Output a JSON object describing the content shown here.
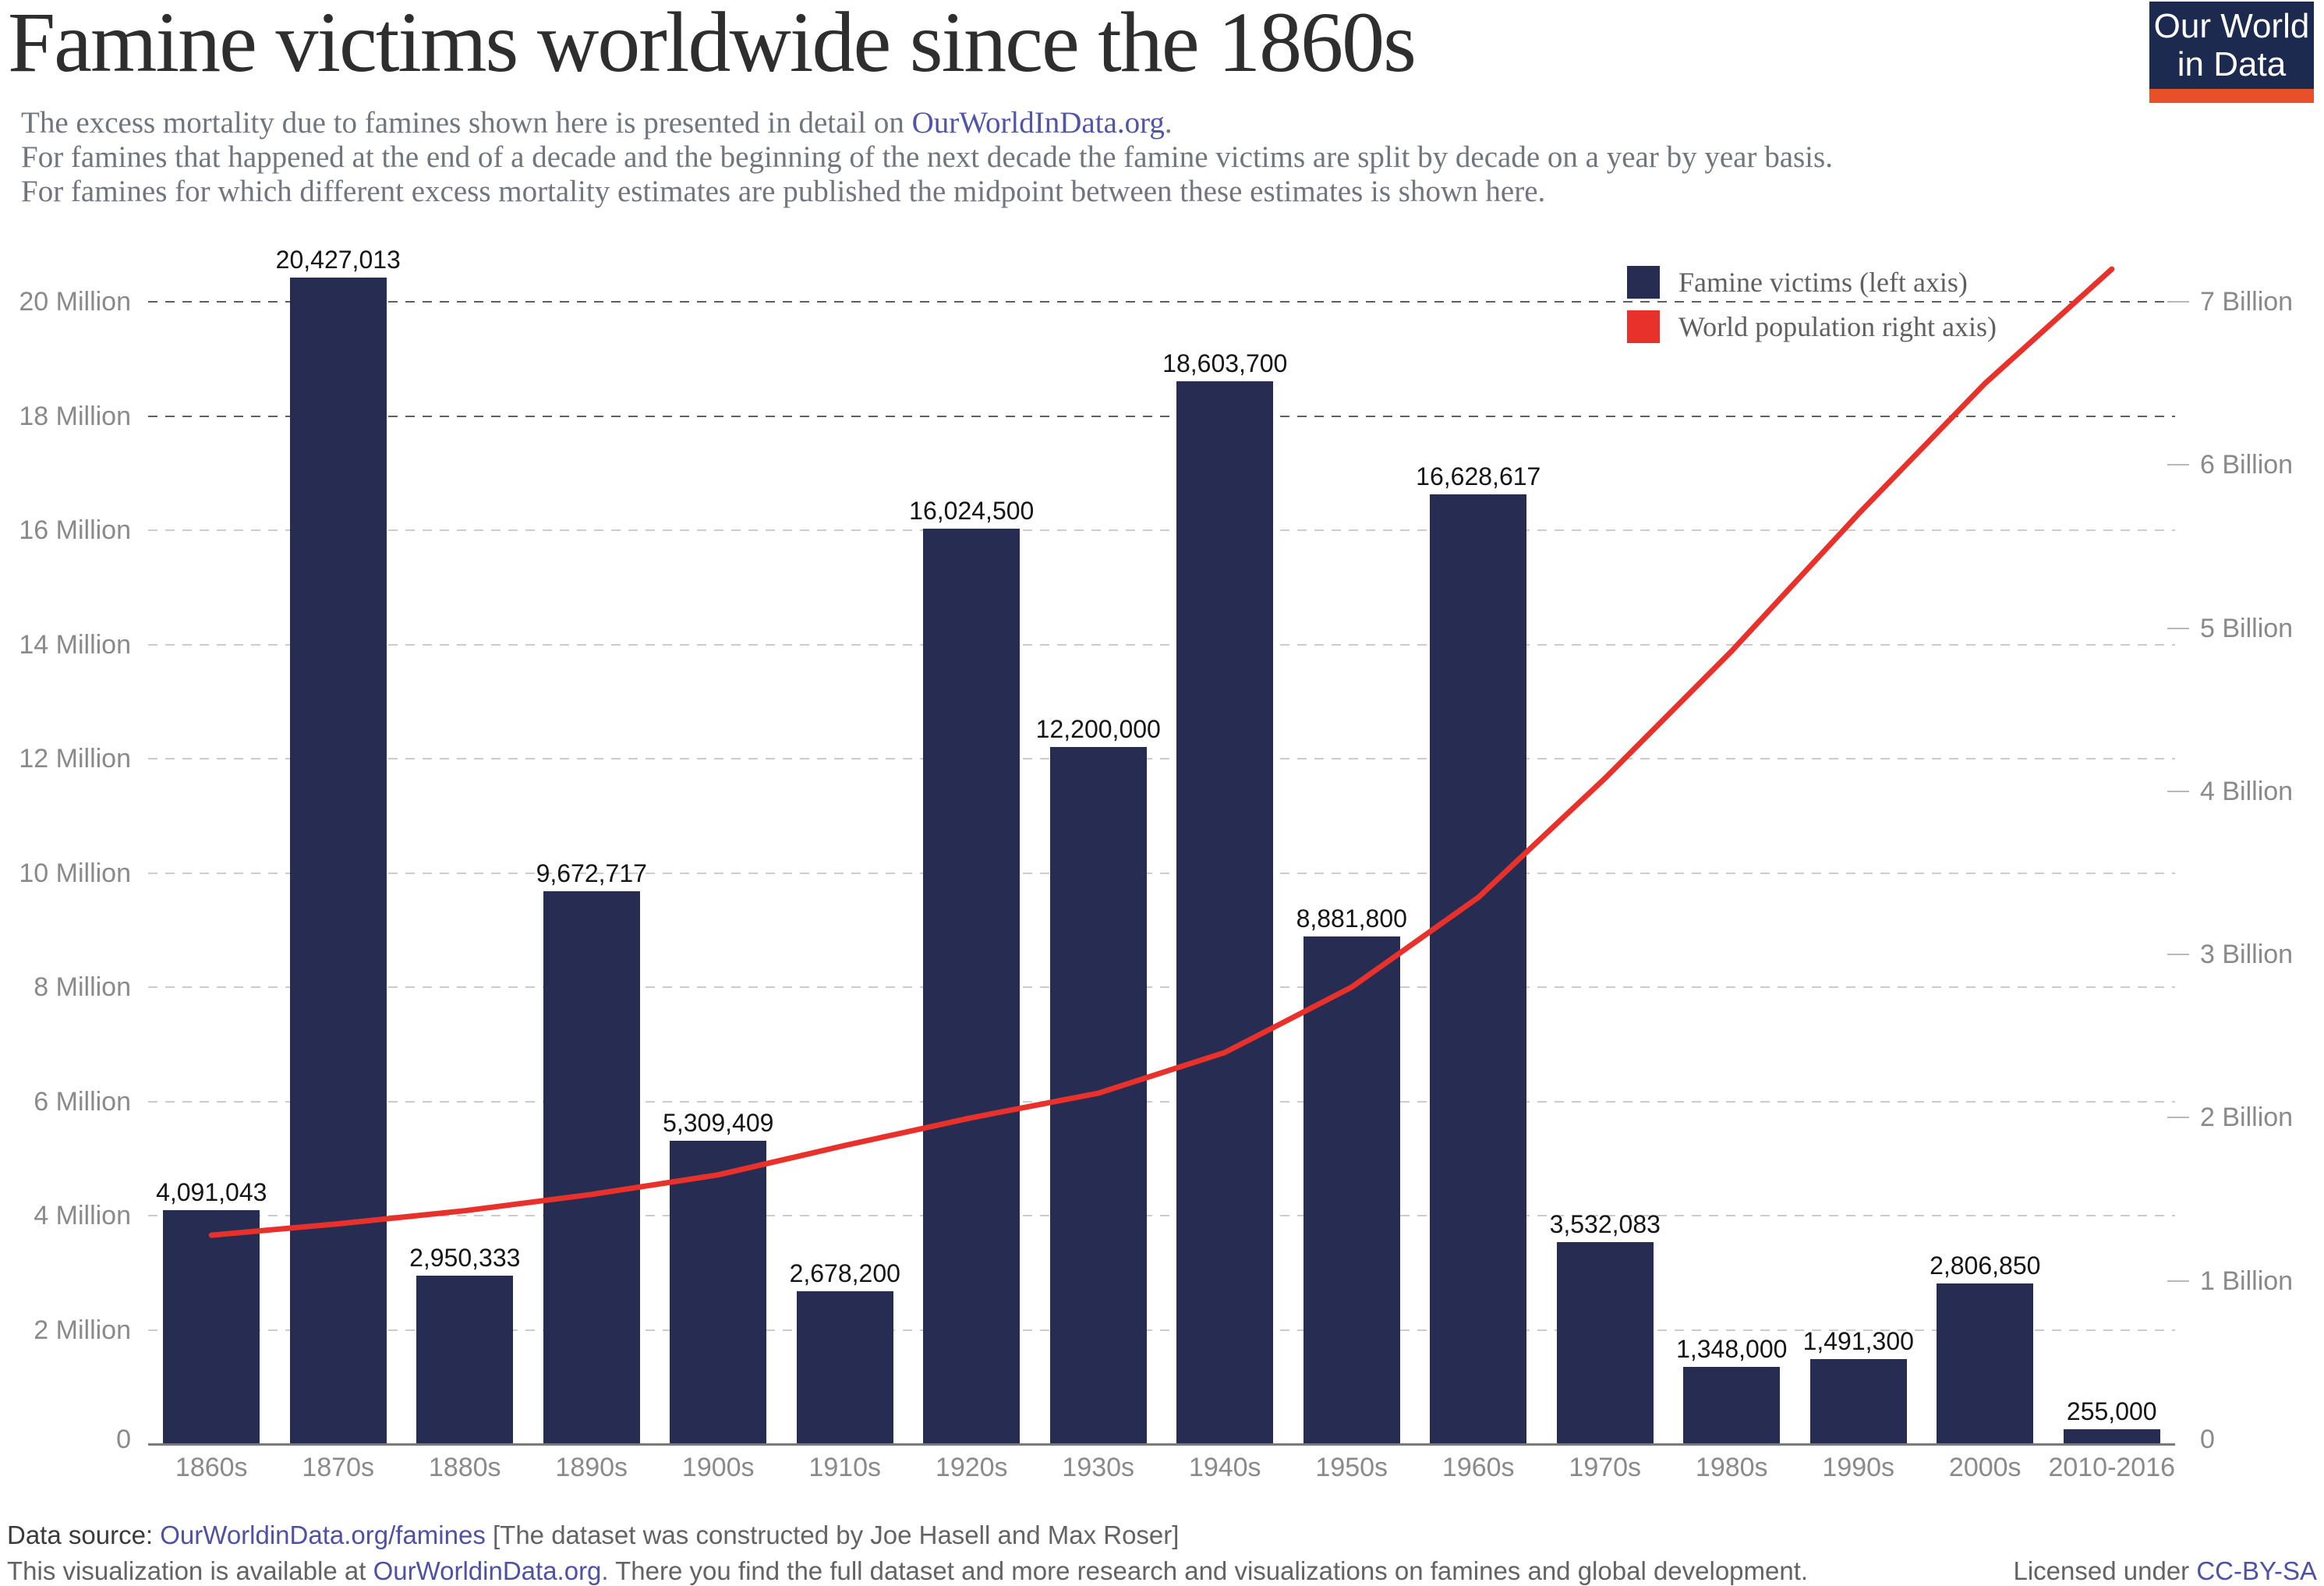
{
  "header": {
    "title": "Famine victims worldwide since the 1860s",
    "subtitle_line1_prefix": "The excess mortality due to famines shown here is presented in detail on ",
    "subtitle_line1_link": "OurWorldInData.org",
    "subtitle_line1_suffix": ".",
    "subtitle_line2": "For famines that happened at the end of a decade and the beginning of the next decade the famine victims are split by decade on a year by year basis.",
    "subtitle_line3": "For famines for which different excess mortality estimates are published the midpoint between these estimates is shown here."
  },
  "logo": {
    "line1": "Our World",
    "line2": "in Data",
    "bg_color": "#1d2a4f",
    "strip_color": "#e8502a"
  },
  "legend": {
    "items": [
      {
        "label": "Famine victims (left axis)",
        "color": "#272c52"
      },
      {
        "label": "World population right axis)",
        "color": "#e8312a"
      }
    ]
  },
  "chart_data": {
    "type": "bar",
    "title": "Famine victims worldwide since the 1860s",
    "categories": [
      "1860s",
      "1870s",
      "1880s",
      "1890s",
      "1900s",
      "1910s",
      "1920s",
      "1930s",
      "1940s",
      "1950s",
      "1960s",
      "1970s",
      "1980s",
      "1990s",
      "2000s",
      "2010-2016"
    ],
    "series": [
      {
        "name": "Famine victims (left axis)",
        "type": "bar",
        "axis": "left",
        "color": "#272c52",
        "values": [
          4091043,
          20427013,
          2950333,
          9672717,
          5309409,
          2678200,
          16024500,
          12200000,
          18603700,
          8881800,
          16628617,
          3532083,
          1348000,
          1491300,
          2806850,
          255000
        ],
        "value_labels": [
          "4,091,043",
          "20,427,013",
          "2,950,333",
          "9,672,717",
          "5,309,409",
          "2,678,200",
          "16,024,500",
          "12,200,000",
          "18,603,700",
          "8,881,800",
          "16,628,617",
          "3,532,083",
          "1,348,000",
          "1,491,300",
          "2,806,850",
          "255,000"
        ]
      },
      {
        "name": "World population right axis)",
        "type": "line",
        "axis": "right",
        "color": "#e8312a",
        "values_billions": [
          1.28,
          1.35,
          1.43,
          1.53,
          1.65,
          1.83,
          2.0,
          2.15,
          2.4,
          2.8,
          3.35,
          4.08,
          4.86,
          5.7,
          6.5,
          7.2
        ]
      }
    ],
    "left_axis": {
      "tick_labels": [
        "20 Million",
        "18 Million",
        "16 Million",
        "14 Million",
        "12 Million",
        "10 Million",
        "8 Million",
        "6 Million",
        "4 Million",
        "2 Million",
        "0"
      ],
      "range": [
        0,
        20000000
      ],
      "gridlines": "dashed horizontal"
    },
    "right_axis": {
      "tick_labels": [
        "7 Billion",
        "6 Billion",
        "5 Billion",
        "4 Billion",
        "3 Billion",
        "2 Billion",
        "1 Billion",
        "0"
      ],
      "range_billions": [
        0,
        7
      ]
    },
    "legend_position": "top-right",
    "xlabel": "",
    "ylabel": ""
  },
  "footer": {
    "line1_label": "Data source: ",
    "line1_link": "OurWorldinData.org/famines",
    "line1_rest": " [The dataset was constructed by Joe Hasell and Max Roser]",
    "line2_prefix": "This visualization is available at ",
    "line2_link": "OurWorldinData.org",
    "line2_suffix": ". There you find the full dataset and more research and visualizations on famines and global development.",
    "license_prefix": "Licensed under ",
    "license_link": "CC-BY-SA"
  },
  "colors": {
    "bar": "#272c52",
    "line": "#e8312a",
    "link": "#5254a8",
    "accent_dark_grid": "#5f5f5f",
    "light_grid": "#cccccc"
  }
}
